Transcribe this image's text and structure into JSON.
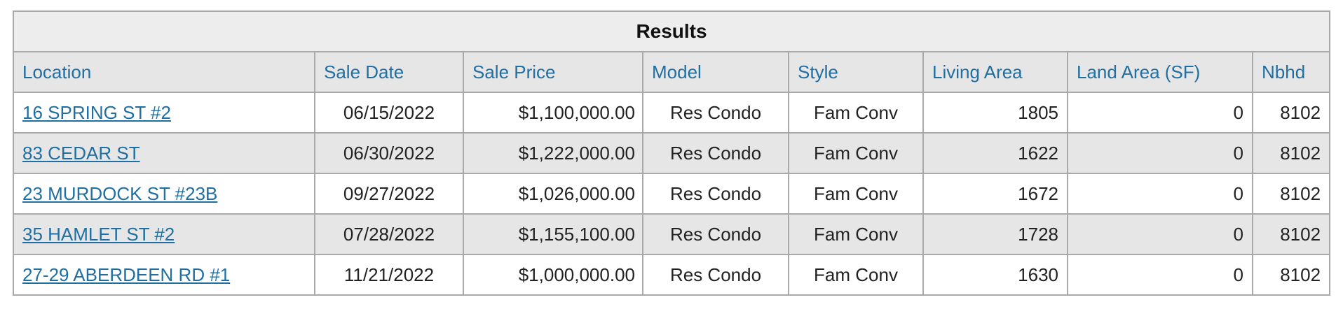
{
  "table": {
    "title": "Results",
    "columns": [
      "Location",
      "Sale Date",
      "Sale Price",
      "Model",
      "Style",
      "Living Area",
      "Land Area (SF)",
      "Nbhd"
    ],
    "rows": [
      {
        "location": "16 SPRING ST #2",
        "sale_date": "06/15/2022",
        "sale_price": "$1,100,000.00",
        "model": "Res Condo",
        "style": "Fam Conv",
        "living_area": "1805",
        "land_area": "0",
        "nbhd": "8102"
      },
      {
        "location": "83 CEDAR ST",
        "sale_date": "06/30/2022",
        "sale_price": "$1,222,000.00",
        "model": "Res Condo",
        "style": "Fam Conv",
        "living_area": "1622",
        "land_area": "0",
        "nbhd": "8102"
      },
      {
        "location": "23 MURDOCK ST #23B",
        "sale_date": "09/27/2022",
        "sale_price": "$1,026,000.00",
        "model": "Res Condo",
        "style": "Fam Conv",
        "living_area": "1672",
        "land_area": "0",
        "nbhd": "8102"
      },
      {
        "location": "35 HAMLET ST #2",
        "sale_date": "07/28/2022",
        "sale_price": "$1,155,100.00",
        "model": "Res Condo",
        "style": "Fam Conv",
        "living_area": "1728",
        "land_area": "0",
        "nbhd": "8102"
      },
      {
        "location": "27-29 ABERDEEN RD #1",
        "sale_date": "11/21/2022",
        "sale_price": "$1,000,000.00",
        "model": "Res Condo",
        "style": "Fam Conv",
        "living_area": "1630",
        "land_area": "0",
        "nbhd": "8102"
      }
    ]
  },
  "colors": {
    "link": "#1f6fa3",
    "header_bg": "#e6e6e6",
    "title_bg": "#ededed",
    "border": "#a9a9a9"
  }
}
